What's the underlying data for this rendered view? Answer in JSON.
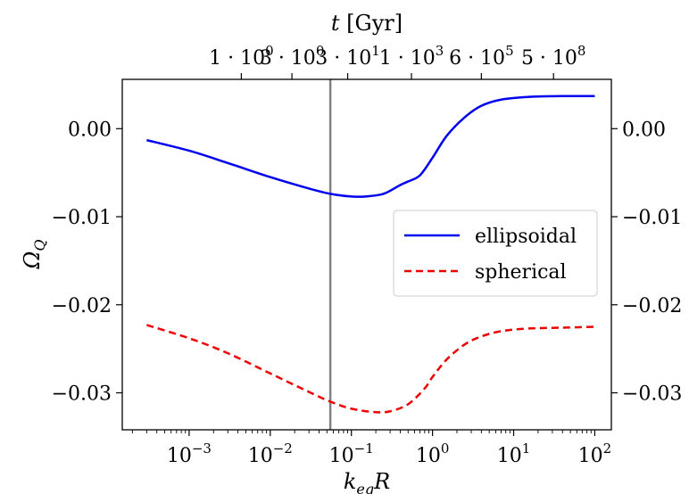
{
  "chart_data": {
    "type": "line",
    "xlabel": "k_eq R",
    "ylabel": "Ω_Q",
    "top_xlabel": "t [Gyr]",
    "xscale": "log",
    "xlim": [
      0.00015,
      160
    ],
    "ylim": [
      -0.0342,
      0.0056
    ],
    "grid": false,
    "legend_position": "center-right",
    "x_ticks": [
      {
        "value": 0.001,
        "base": "10",
        "exp": "−3"
      },
      {
        "value": 0.01,
        "base": "10",
        "exp": "−2"
      },
      {
        "value": 0.1,
        "base": "10",
        "exp": "−1"
      },
      {
        "value": 1,
        "base": "10",
        "exp": "0"
      },
      {
        "value": 10,
        "base": "10",
        "exp": "1"
      },
      {
        "value": 100,
        "base": "10",
        "exp": "2"
      }
    ],
    "top_ticks": [
      {
        "x": 0.0044,
        "mant": "1 · 10",
        "exp": "0"
      },
      {
        "x": 0.0185,
        "mant": "3 · 10",
        "exp": "0"
      },
      {
        "x": 0.09,
        "mant": "3 · 10",
        "exp": "1"
      },
      {
        "x": 0.55,
        "mant": "1 · 10",
        "exp": "3"
      },
      {
        "x": 4.0,
        "mant": "6 · 10",
        "exp": "5"
      },
      {
        "x": 31,
        "mant": "5 · 10",
        "exp": "8"
      }
    ],
    "y_ticks": [
      {
        "value": 0.0,
        "label": "0.00"
      },
      {
        "value": -0.01,
        "label": "−0.01"
      },
      {
        "value": -0.02,
        "label": "−0.02"
      },
      {
        "value": -0.03,
        "label": "−0.03"
      }
    ],
    "vline": {
      "x": 0.055,
      "color": "#808080"
    },
    "series": [
      {
        "name": "ellipsoidal",
        "color": "#0000ee",
        "dash": "",
        "points": [
          [
            0.0003,
            -0.0013
          ],
          [
            0.001,
            -0.0025
          ],
          [
            0.003,
            -0.0039
          ],
          [
            0.01,
            -0.0055
          ],
          [
            0.03,
            -0.0068
          ],
          [
            0.055,
            -0.0074
          ],
          [
            0.1,
            -0.0077
          ],
          [
            0.15,
            -0.0077
          ],
          [
            0.25,
            -0.0074
          ],
          [
            0.4,
            -0.0064
          ],
          [
            0.5,
            -0.006
          ],
          [
            0.7,
            -0.0053
          ],
          [
            1.0,
            -0.0033
          ],
          [
            1.5,
            -0.0008
          ],
          [
            2.5,
            0.0013
          ],
          [
            4.0,
            0.0026
          ],
          [
            7.0,
            0.0033
          ],
          [
            15.0,
            0.0036
          ],
          [
            40.0,
            0.0037
          ],
          [
            100.0,
            0.0037
          ]
        ]
      },
      {
        "name": "spherical",
        "color": "#ee0000",
        "dash": "8,5",
        "points": [
          [
            0.0003,
            -0.0223
          ],
          [
            0.001,
            -0.0238
          ],
          [
            0.003,
            -0.0255
          ],
          [
            0.01,
            -0.0278
          ],
          [
            0.03,
            -0.0299
          ],
          [
            0.055,
            -0.031
          ],
          [
            0.1,
            -0.0318
          ],
          [
            0.2,
            -0.0322
          ],
          [
            0.3,
            -0.0321
          ],
          [
            0.5,
            -0.0313
          ],
          [
            0.8,
            -0.0295
          ],
          [
            1.0,
            -0.0282
          ],
          [
            1.5,
            -0.0262
          ],
          [
            2.5,
            -0.0245
          ],
          [
            4.0,
            -0.0236
          ],
          [
            7.0,
            -0.023
          ],
          [
            15.0,
            -0.0227
          ],
          [
            40.0,
            -0.0226
          ],
          [
            100.0,
            -0.0225
          ]
        ]
      }
    ]
  }
}
